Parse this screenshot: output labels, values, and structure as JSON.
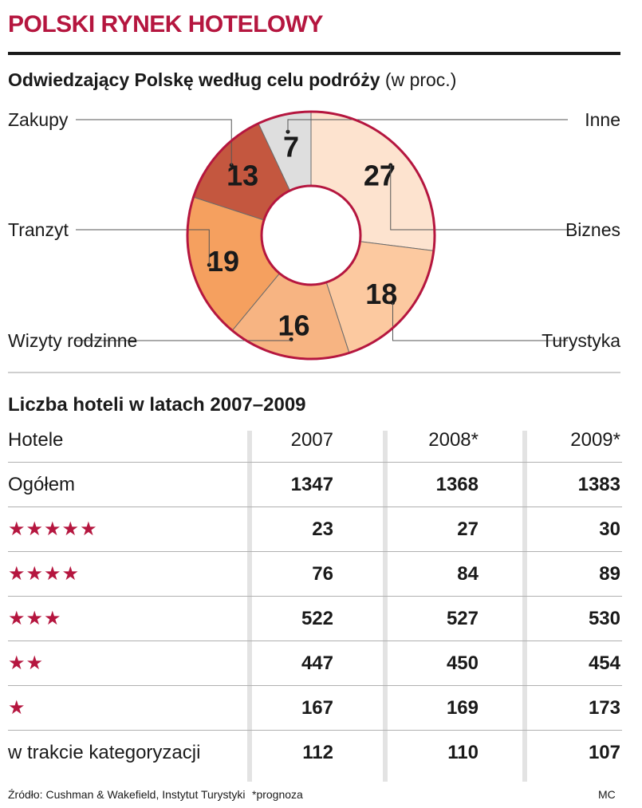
{
  "header": {
    "title": "POLSKI RYNEK HOTELOWY"
  },
  "pie": {
    "title_bold": "Odwiedzający Polskę według celu podróży",
    "title_unit": "(w proc.)"
  },
  "chart_data": [
    {
      "type": "pie",
      "title": "Odwiedzający Polskę według celu podróży (w proc.)",
      "slices": [
        {
          "label": "Biznes",
          "value": 27,
          "color": "#fde3cf"
        },
        {
          "label": "Turystyka",
          "value": 18,
          "color": "#fcc9a0"
        },
        {
          "label": "Wizyty rodzinne",
          "value": 16,
          "color": "#f7b482"
        },
        {
          "label": "Tranzyt",
          "value": 19,
          "color": "#f5a05f"
        },
        {
          "label": "Zakupy",
          "value": 13,
          "color": "#c4573f"
        },
        {
          "label": "Inne",
          "value": 7,
          "color": "#dedede"
        }
      ]
    },
    {
      "type": "table",
      "title": "Liczba hoteli w latach 2007–2009",
      "columns": [
        "Hotele",
        "2007",
        "2008*",
        "2009*"
      ],
      "rows": [
        {
          "label": "Ogółem",
          "values": [
            "1347",
            "1368",
            "1383"
          ]
        },
        {
          "label": "★★★★★",
          "values": [
            "23",
            "27",
            "30"
          ]
        },
        {
          "label": "★★★★",
          "values": [
            "76",
            "84",
            "89"
          ]
        },
        {
          "label": "★★★",
          "values": [
            "522",
            "527",
            "530"
          ]
        },
        {
          "label": "★★",
          "values": [
            "447",
            "450",
            "454"
          ]
        },
        {
          "label": "★",
          "values": [
            "167",
            "169",
            "173"
          ]
        },
        {
          "label": "w trakcie kategoryzacji",
          "values": [
            "112",
            "110",
            "107"
          ]
        }
      ]
    }
  ],
  "footer": {
    "source": "Źródło: Cushman & Wakefield, Instytut Turystyki",
    "note": "*prognoza",
    "author": "MC"
  }
}
